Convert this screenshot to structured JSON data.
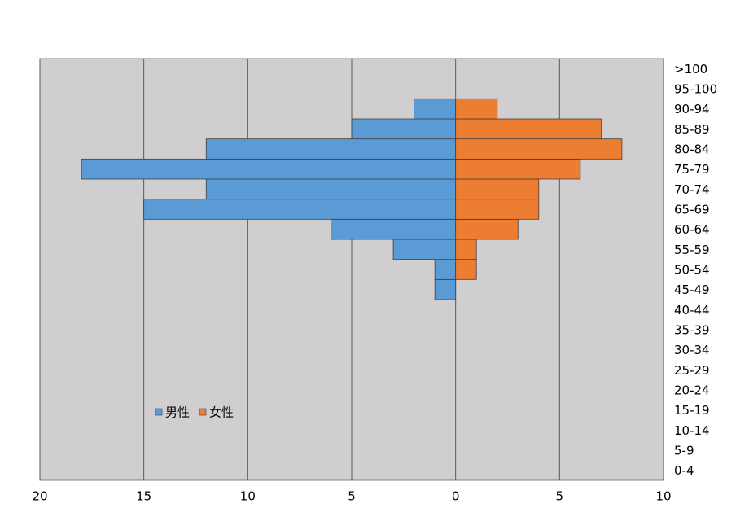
{
  "chart_data": {
    "type": "population-pyramid",
    "categories": [
      "0-4",
      "5-9",
      "10-14",
      "15-19",
      "20-24",
      "25-29",
      "30-34",
      "35-39",
      "40-44",
      "45-49",
      "50-54",
      "55-59",
      "60-64",
      "65-69",
      "70-74",
      "75-79",
      "80-84",
      "85-89",
      "90-94",
      "95-100",
      ">100"
    ],
    "series": [
      {
        "name": "男性",
        "color": "#5b9bd5",
        "values": [
          0,
          0,
          0,
          0,
          0,
          0,
          0,
          0,
          0,
          -1,
          -1,
          -3,
          -6,
          -15,
          -12,
          -18,
          -12,
          -5,
          -2,
          0,
          0
        ]
      },
      {
        "name": "女性",
        "color": "#ed7d31",
        "values": [
          0,
          0,
          0,
          0,
          0,
          0,
          0,
          0,
          0,
          0,
          1,
          1,
          3,
          4,
          4,
          6,
          8,
          7,
          2,
          0,
          0
        ]
      }
    ],
    "xlim": [
      -20,
      10
    ],
    "xticks": [
      {
        "value": -20,
        "label": "20"
      },
      {
        "value": -15,
        "label": "15"
      },
      {
        "value": -10,
        "label": "10"
      },
      {
        "value": -5,
        "label": "5"
      },
      0,
      5,
      10
    ],
    "grid": true,
    "legend": "lower left"
  }
}
